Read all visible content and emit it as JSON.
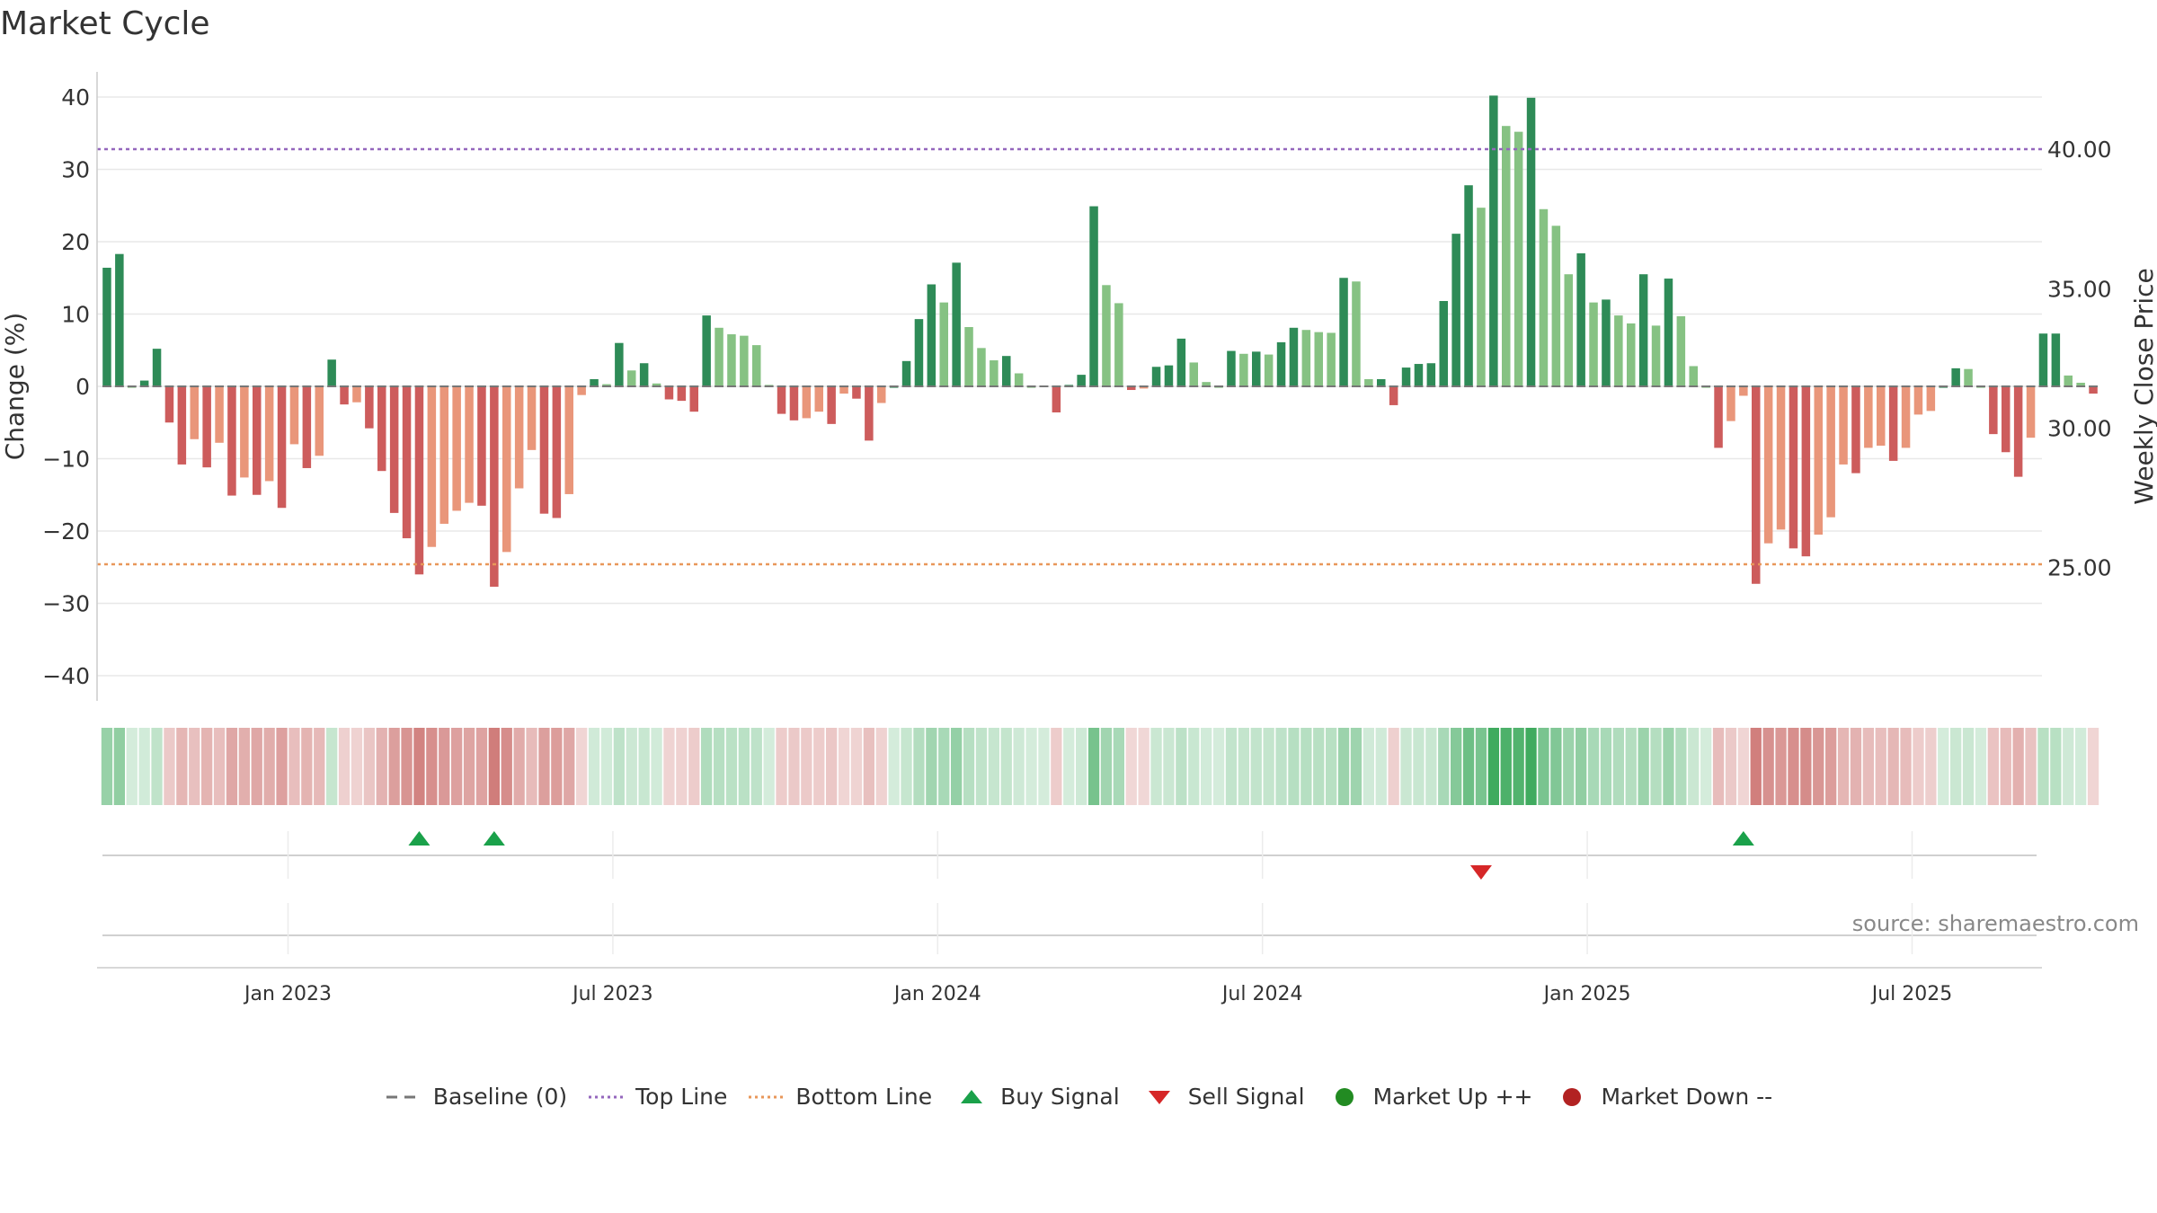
{
  "chart_data": {
    "type": "bar",
    "title": "Market Cycle",
    "ylabel": "Change (%)",
    "y2label": "Weekly Close Price",
    "ylim": [
      -41,
      42
    ],
    "y_ticks": [
      40,
      30,
      20,
      10,
      0,
      -10,
      -20,
      -30,
      -40
    ],
    "y2_ticks": [
      "40.00",
      "35.00",
      "30.00",
      "25.00"
    ],
    "y2_tick_positions": [
      32.8,
      13.5,
      -5.8,
      -25.0
    ],
    "top_line": 32.8,
    "bottom_line": -24.6,
    "x_tick_labels": [
      "Jan 2023",
      "Jul 2023",
      "Jan 2024",
      "Jul 2024",
      "Jan 2025",
      "Jul 2025"
    ],
    "x_tick_index": [
      14.5,
      40.5,
      66.5,
      92.5,
      118.5,
      144.5
    ],
    "values": [
      16.4,
      18.3,
      0,
      0.8,
      5.2,
      -5,
      -10.8,
      -7.3,
      -11.2,
      -7.8,
      -15.1,
      -12.6,
      -15,
      -13.1,
      -16.8,
      -8,
      -11.3,
      -9.6,
      3.7,
      -2.5,
      -2.2,
      -5.8,
      -11.7,
      -17.5,
      -21,
      -26,
      -22.2,
      -19,
      -17.2,
      -16.1,
      -16.5,
      -27.7,
      -22.9,
      -14.1,
      -8.8,
      -17.6,
      -18.2,
      -14.9,
      -1.2,
      1,
      0.3,
      6,
      2.2,
      3.2,
      0.4,
      -1.8,
      -2,
      -3.5,
      9.8,
      8.1,
      7.2,
      7,
      5.7,
      0.2,
      -3.8,
      -4.7,
      -4.4,
      -3.5,
      -5.2,
      -1,
      -1.7,
      -7.5,
      -2.3,
      0,
      3.5,
      9.3,
      14.1,
      11.6,
      17.1,
      8.2,
      5.3,
      3.6,
      4.2,
      1.8,
      0,
      0.1,
      -3.6,
      0.2,
      1.6,
      24.9,
      14,
      11.5,
      -0.5,
      -0.3,
      2.7,
      2.9,
      6.6,
      3.3,
      0.6,
      0,
      4.9,
      4.5,
      4.8,
      4.4,
      6.1,
      8.1,
      7.8,
      7.5,
      7.4,
      15,
      14.5,
      1,
      1,
      -2.6,
      2.6,
      3.1,
      3.2,
      11.8,
      21.1,
      27.8,
      24.7,
      40.2,
      36,
      35.2,
      39.9,
      24.5,
      22.2,
      15.5,
      18.4,
      11.6,
      12,
      9.8,
      8.7,
      15.5,
      8.4,
      14.9,
      9.7,
      2.8,
      0,
      -8.5,
      -4.8,
      -1.3,
      -27.3,
      -21.7,
      -19.8,
      -22.4,
      -23.5,
      -20.5,
      -18.1,
      -10.8,
      -12,
      -8.5,
      -8.2,
      -10.3,
      -8.5,
      -3.9,
      -3.4,
      0,
      2.5,
      2.4,
      0,
      -6.6,
      -9.1,
      -12.5,
      -7.1,
      7.3,
      7.3,
      1.5,
      0.5,
      -1
    ],
    "buy_signals": [
      25,
      31,
      131
    ],
    "sell_signals": [
      110
    ],
    "colors": {
      "strong_up": "#2e8b57",
      "weak_up": "#86c283",
      "strong_down": "#cd5c5c",
      "weak_down": "#e9967a",
      "top_line": "#9467bd",
      "bottom_line": "#e8975a",
      "buy": "#1aa14a",
      "sell": "#d62728",
      "market_up": "#228b22",
      "market_down": "#b22222",
      "baseline": "#777777"
    },
    "legend": [
      {
        "label": "Baseline (0)",
        "symbol": "dash"
      },
      {
        "label": "Top Line",
        "symbol": "dot-purple"
      },
      {
        "label": "Bottom Line",
        "symbol": "dot-orange"
      },
      {
        "label": "Buy Signal",
        "symbol": "triangle-up"
      },
      {
        "label": "Sell Signal",
        "symbol": "triangle-down"
      },
      {
        "label": "Market Up ++",
        "symbol": "circle-green"
      },
      {
        "label": "Market Down --",
        "symbol": "circle-red"
      }
    ],
    "legend_position": "bottom",
    "grid": true
  },
  "source": "source: sharemaestro.com"
}
